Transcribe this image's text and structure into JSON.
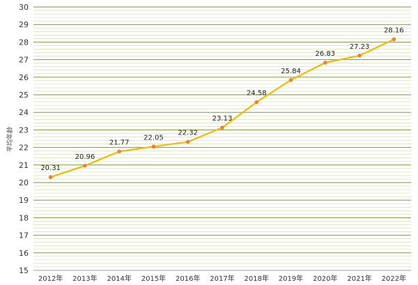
{
  "chart_data": {
    "type": "line",
    "title": "",
    "xlabel": "",
    "ylabel": "平均年龄",
    "categories": [
      "2012年",
      "2013年",
      "2014年",
      "2015年",
      "2016年",
      "2017年",
      "2018年",
      "2019年",
      "2020年",
      "2021年",
      "2022年"
    ],
    "series": [
      {
        "values": [
          20.31,
          20.96,
          21.77,
          22.05,
          22.32,
          23.13,
          24.58,
          25.84,
          26.83,
          27.23,
          28.16
        ]
      }
    ],
    "ylim": [
      15,
      30
    ],
    "yticks": [
      15,
      16,
      17,
      18,
      19,
      20,
      21,
      22,
      23,
      24,
      25,
      26,
      27,
      28,
      29,
      30
    ],
    "grid": true,
    "legend": "none",
    "colors": {
      "line": "#f5b800",
      "marker": "#e8823a",
      "major_grid": "#7a9a3a",
      "minor_grid": "#c8dca0",
      "axis": "#999999"
    }
  }
}
